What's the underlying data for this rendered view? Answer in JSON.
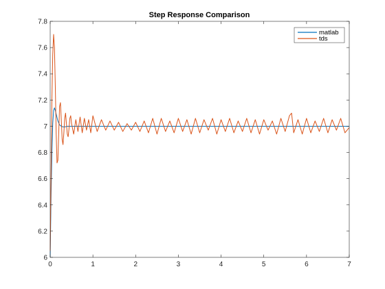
{
  "chart_data": {
    "type": "line",
    "title": "Step Response Comparison",
    "xlabel": "",
    "ylabel": "",
    "xlim": [
      0,
      7
    ],
    "ylim": [
      6,
      7.8
    ],
    "grid": false,
    "legend_position": "top-right",
    "x_ticks": [
      0,
      1,
      2,
      3,
      4,
      5,
      6,
      7
    ],
    "x_tick_labels": [
      "0",
      "1",
      "2",
      "3",
      "4",
      "5",
      "6",
      "7"
    ],
    "y_ticks": [
      6,
      6.2,
      6.4,
      6.6,
      6.8,
      7,
      7.2,
      7.4,
      7.6,
      7.8
    ],
    "y_tick_labels": [
      "6",
      "6.2",
      "6.4",
      "6.6",
      "6.8",
      "7",
      "7.2",
      "7.4",
      "7.6",
      "7.8"
    ],
    "series": [
      {
        "name": "matlab",
        "color": "#0072BD",
        "x": [
          0,
          0.02,
          0.04,
          0.06,
          0.08,
          0.1,
          0.12,
          0.15,
          0.18,
          0.22,
          0.26,
          0.3,
          0.35,
          0.4,
          0.5,
          0.6,
          0.8,
          1.0,
          1.5,
          2,
          3,
          4,
          5,
          6,
          7
        ],
        "y": [
          6.0,
          6.45,
          6.8,
          7.02,
          7.12,
          7.14,
          7.12,
          7.08,
          7.04,
          7.01,
          7.0,
          6.995,
          6.995,
          7.0,
          7.0,
          7.0,
          7.0,
          7.0,
          7.0,
          7.0,
          7.0,
          7.0,
          7.0,
          7.0,
          7.0
        ]
      },
      {
        "name": "tds",
        "color": "#D95319",
        "x": [
          0,
          0.02,
          0.04,
          0.06,
          0.08,
          0.1,
          0.12,
          0.14,
          0.16,
          0.18,
          0.2,
          0.22,
          0.24,
          0.26,
          0.28,
          0.3,
          0.32,
          0.34,
          0.36,
          0.38,
          0.4,
          0.42,
          0.44,
          0.46,
          0.48,
          0.5,
          0.55,
          0.6,
          0.65,
          0.7,
          0.75,
          0.8,
          0.85,
          0.9,
          0.95,
          1.0,
          1.1,
          1.2,
          1.3,
          1.4,
          1.5,
          1.6,
          1.7,
          1.8,
          1.9,
          2.0,
          2.1,
          2.2,
          2.3,
          2.4,
          2.5,
          2.6,
          2.7,
          2.8,
          2.9,
          3.0,
          3.1,
          3.2,
          3.3,
          3.4,
          3.5,
          3.6,
          3.7,
          3.8,
          3.9,
          4.0,
          4.1,
          4.2,
          4.3,
          4.4,
          4.5,
          4.6,
          4.7,
          4.8,
          4.9,
          5.0,
          5.1,
          5.2,
          5.3,
          5.4,
          5.5,
          5.6,
          5.65,
          5.7,
          5.8,
          5.9,
          6.0,
          6.1,
          6.2,
          6.3,
          6.4,
          6.5,
          6.6,
          6.7,
          6.8,
          6.9,
          7.0
        ],
        "y": [
          6.05,
          6.6,
          7.2,
          7.55,
          7.7,
          7.6,
          7.3,
          6.95,
          6.72,
          6.74,
          6.95,
          7.15,
          7.18,
          7.05,
          6.9,
          6.86,
          6.95,
          7.06,
          7.1,
          7.02,
          6.94,
          6.92,
          6.98,
          7.06,
          7.08,
          7.02,
          6.94,
          7.05,
          6.96,
          7.07,
          6.95,
          7.06,
          6.97,
          7.05,
          6.95,
          7.08,
          6.96,
          7.05,
          6.97,
          7.04,
          6.97,
          7.03,
          6.96,
          7.02,
          6.97,
          7.03,
          6.96,
          7.04,
          6.95,
          7.06,
          6.94,
          7.06,
          6.96,
          7.04,
          6.95,
          7.06,
          6.96,
          7.05,
          6.94,
          7.06,
          6.95,
          7.05,
          6.97,
          7.06,
          6.94,
          7.05,
          6.96,
          7.06,
          6.95,
          7.04,
          6.96,
          7.06,
          6.95,
          7.05,
          6.94,
          7.05,
          6.97,
          7.04,
          6.94,
          7.06,
          6.96,
          7.08,
          7.1,
          6.95,
          7.05,
          6.94,
          7.06,
          6.95,
          7.04,
          6.96,
          7.06,
          6.95,
          7.05,
          6.97,
          7.06,
          6.95,
          6.99
        ]
      }
    ]
  }
}
